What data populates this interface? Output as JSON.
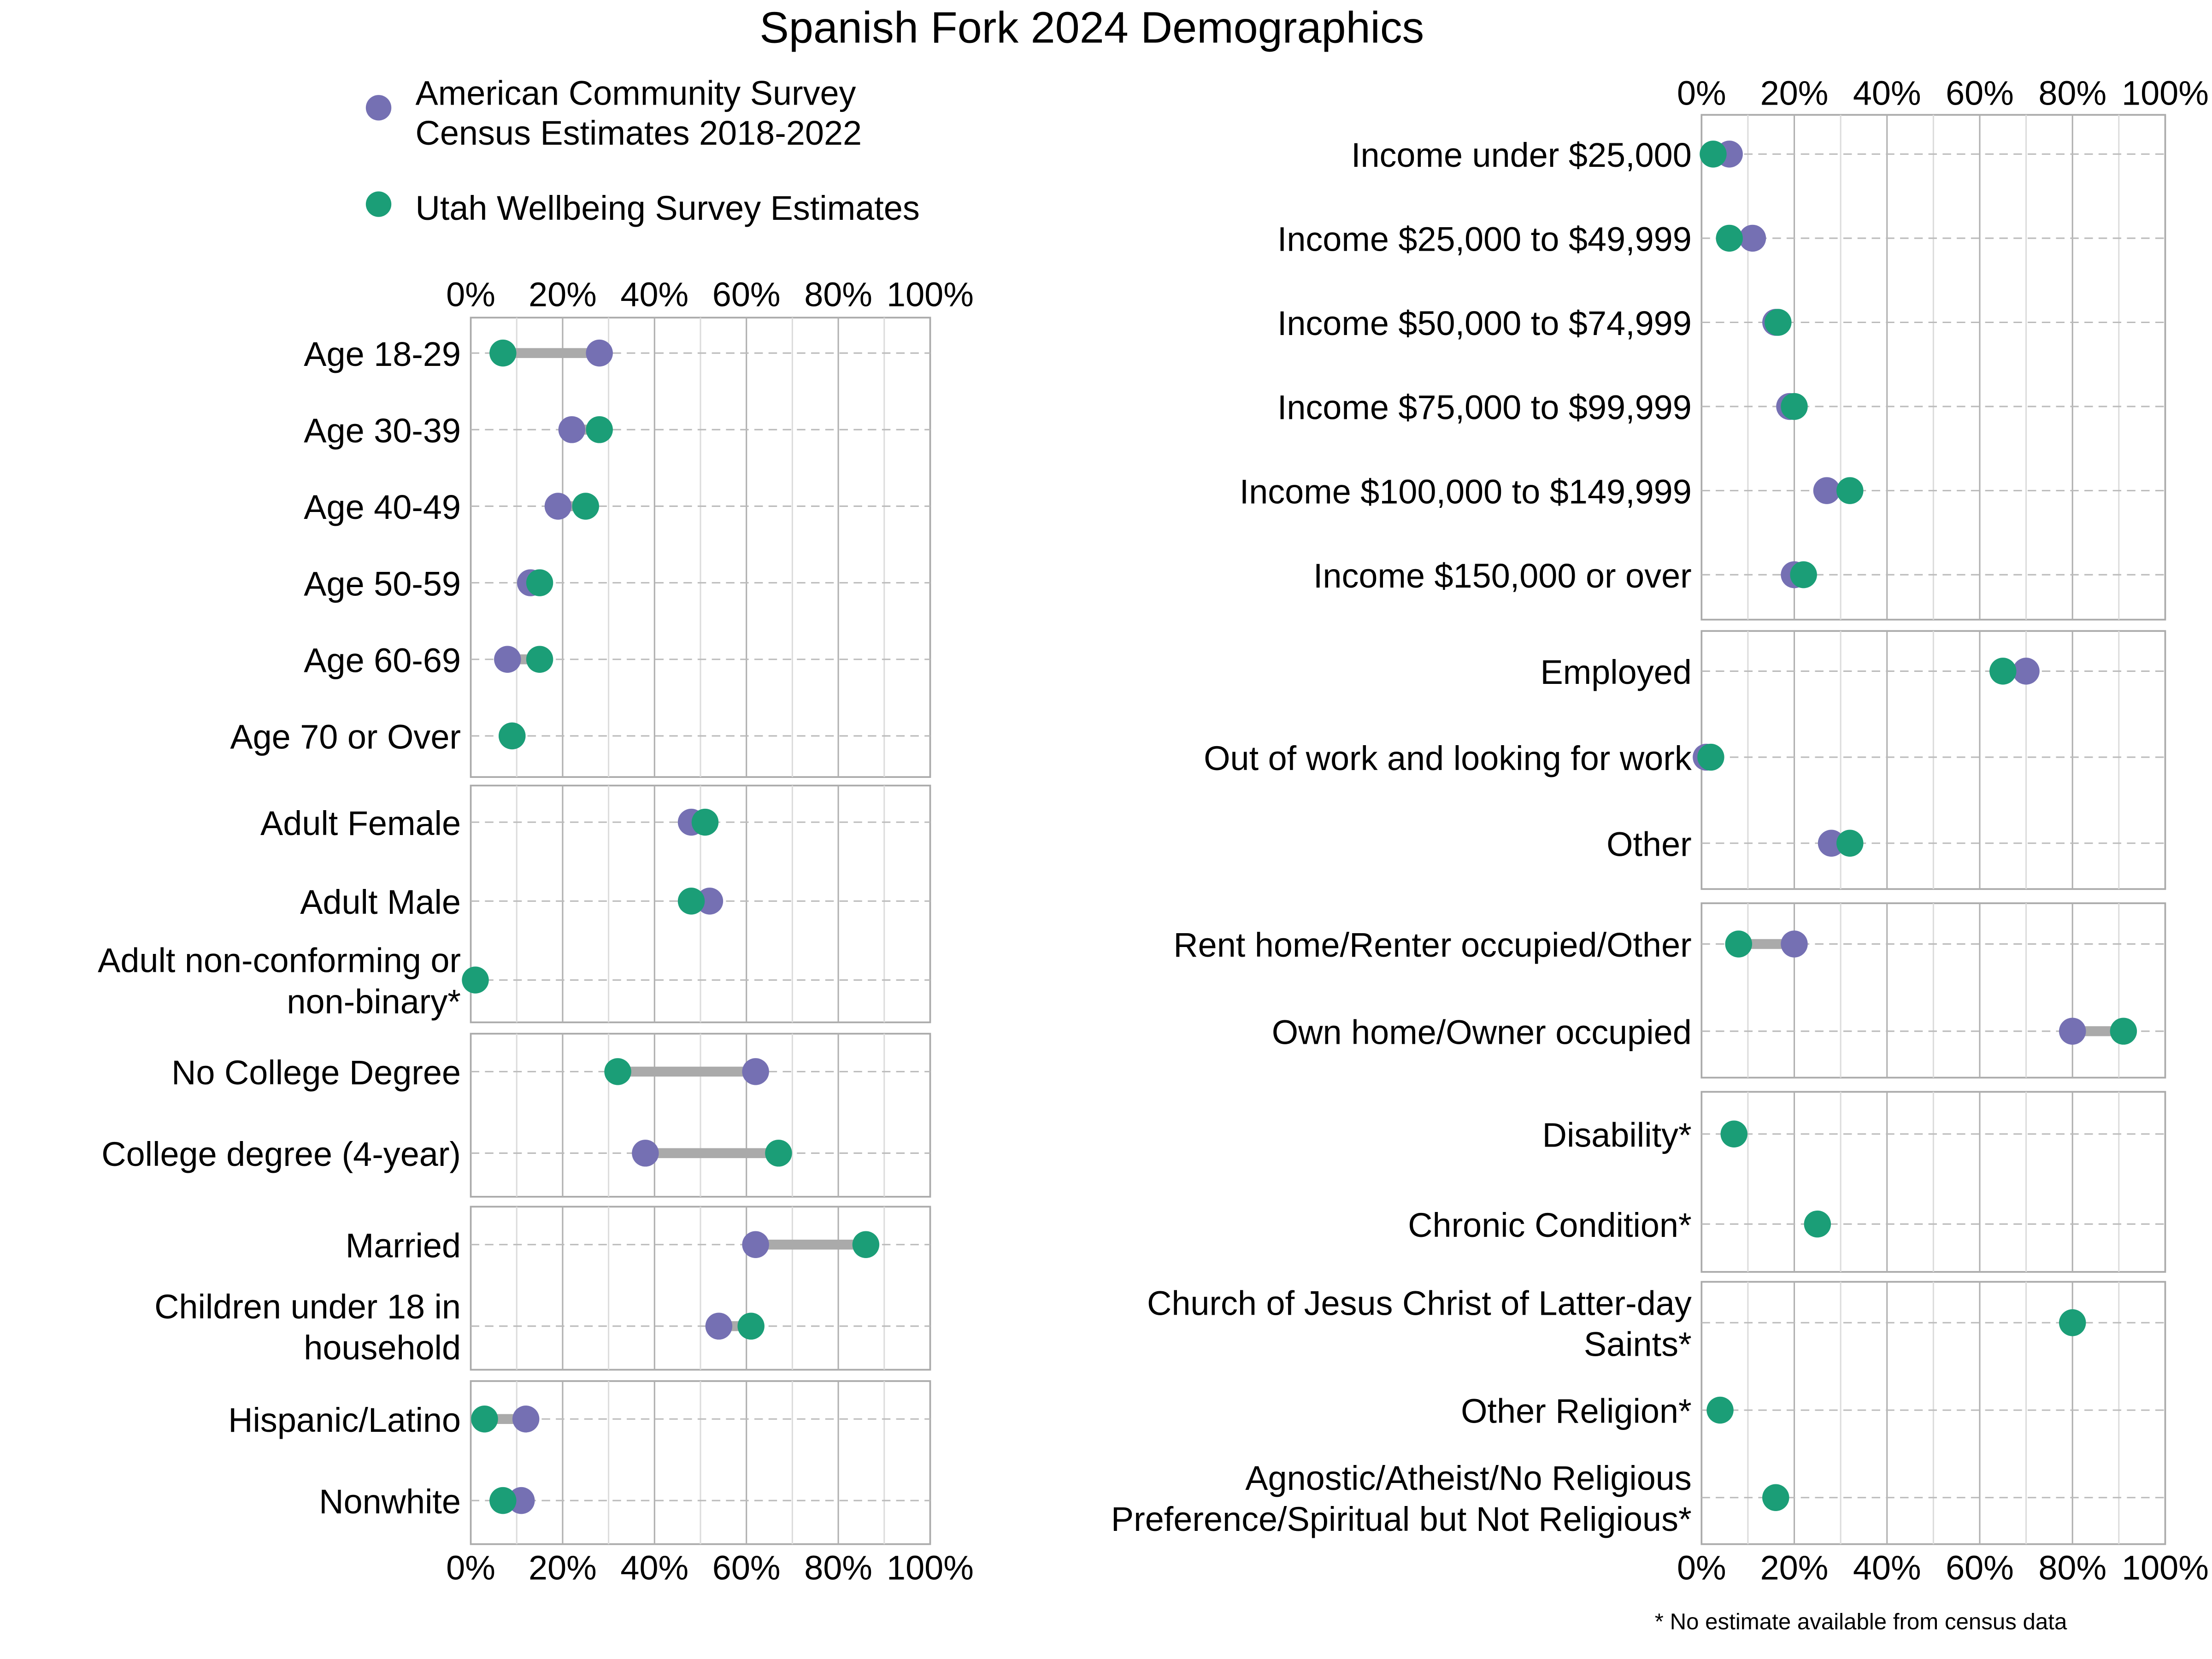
{
  "chart_data": {
    "type": "dumbbell",
    "title": "Spanish Fork 2024 Demographics",
    "footnote": "* No estimate available from census data",
    "xlim": [
      0,
      100
    ],
    "ticks": [
      "0%",
      "20%",
      "40%",
      "60%",
      "80%",
      "100%"
    ],
    "tick_values": [
      0,
      20,
      40,
      60,
      80,
      100
    ],
    "grid": true,
    "legend_placement": "top-left",
    "series": [
      {
        "key": "acs",
        "name_lines": [
          "American Community Survey",
          "Census Estimates 2018-2022"
        ],
        "color": "#7570b3"
      },
      {
        "key": "uws",
        "name_lines": [
          "Utah Wellbeing Survey Estimates"
        ],
        "color": "#1b9e77"
      }
    ],
    "connector_color": "#aaaaaa",
    "panels": [
      {
        "column": "left",
        "rows": [
          {
            "label": [
              "Age 18-29"
            ],
            "acs": 28,
            "uws": 7
          },
          {
            "label": [
              "Age 30-39"
            ],
            "acs": 22,
            "uws": 28
          },
          {
            "label": [
              "Age 40-49"
            ],
            "acs": 19,
            "uws": 25
          },
          {
            "label": [
              "Age 50-59"
            ],
            "acs": 13,
            "uws": 15
          },
          {
            "label": [
              "Age 60-69"
            ],
            "acs": 8,
            "uws": 15
          },
          {
            "label": [
              "Age 70 or Over"
            ],
            "acs": 9,
            "uws": 9
          }
        ]
      },
      {
        "column": "left",
        "rows": [
          {
            "label": [
              "Adult Female"
            ],
            "acs": 48,
            "uws": 51
          },
          {
            "label": [
              "Adult Male"
            ],
            "acs": 52,
            "uws": 48
          },
          {
            "label": [
              "Adult non-conforming or",
              "non-binary*"
            ],
            "acs": null,
            "uws": 1
          }
        ]
      },
      {
        "column": "left",
        "rows": [
          {
            "label": [
              "No College Degree"
            ],
            "acs": 62,
            "uws": 32
          },
          {
            "label": [
              "College degree (4-year)"
            ],
            "acs": 38,
            "uws": 67
          }
        ]
      },
      {
        "column": "left",
        "rows": [
          {
            "label": [
              "Married"
            ],
            "acs": 62,
            "uws": 86
          },
          {
            "label": [
              "Children under 18 in",
              "household"
            ],
            "acs": 54,
            "uws": 61
          }
        ]
      },
      {
        "column": "left",
        "rows": [
          {
            "label": [
              "Hispanic/Latino"
            ],
            "acs": 12,
            "uws": 3
          },
          {
            "label": [
              "Nonwhite"
            ],
            "acs": 11,
            "uws": 7
          }
        ]
      },
      {
        "column": "right",
        "rows": [
          {
            "label": [
              "Income under $25,000"
            ],
            "acs": 6,
            "uws": 2.5
          },
          {
            "label": [
              "Income $25,000 to $49,999"
            ],
            "acs": 11,
            "uws": 6
          },
          {
            "label": [
              "Income $50,000 to $74,999"
            ],
            "acs": 16,
            "uws": 16.5
          },
          {
            "label": [
              "Income $75,000 to $99,999"
            ],
            "acs": 19,
            "uws": 20
          },
          {
            "label": [
              "Income $100,000 to $149,999"
            ],
            "acs": 27,
            "uws": 32
          },
          {
            "label": [
              "Income $150,000 or over"
            ],
            "acs": 20,
            "uws": 22
          }
        ]
      },
      {
        "column": "right",
        "rows": [
          {
            "label": [
              "Employed"
            ],
            "acs": 70,
            "uws": 65
          },
          {
            "label": [
              "Out of work and looking for work"
            ],
            "acs": 1,
            "uws": 2
          },
          {
            "label": [
              "Other"
            ],
            "acs": 28,
            "uws": 32
          }
        ]
      },
      {
        "column": "right",
        "rows": [
          {
            "label": [
              "Rent home/Renter occupied/Other"
            ],
            "acs": 20,
            "uws": 8
          },
          {
            "label": [
              "Own home/Owner occupied"
            ],
            "acs": 80,
            "uws": 91
          }
        ]
      },
      {
        "column": "right",
        "rows": [
          {
            "label": [
              "Disability*"
            ],
            "acs": null,
            "uws": 7
          },
          {
            "label": [
              "Chronic Condition*"
            ],
            "acs": null,
            "uws": 25
          }
        ]
      },
      {
        "column": "right",
        "rows": [
          {
            "label": [
              "Church of Jesus Christ of Latter-day",
              "Saints*"
            ],
            "acs": null,
            "uws": 80
          },
          {
            "label": [
              "Other Religion*"
            ],
            "acs": null,
            "uws": 4
          },
          {
            "label": [
              "Agnostic/Atheist/No Religious",
              "Preference/Spiritual but Not Religious*"
            ],
            "acs": null,
            "uws": 16
          }
        ]
      }
    ]
  }
}
